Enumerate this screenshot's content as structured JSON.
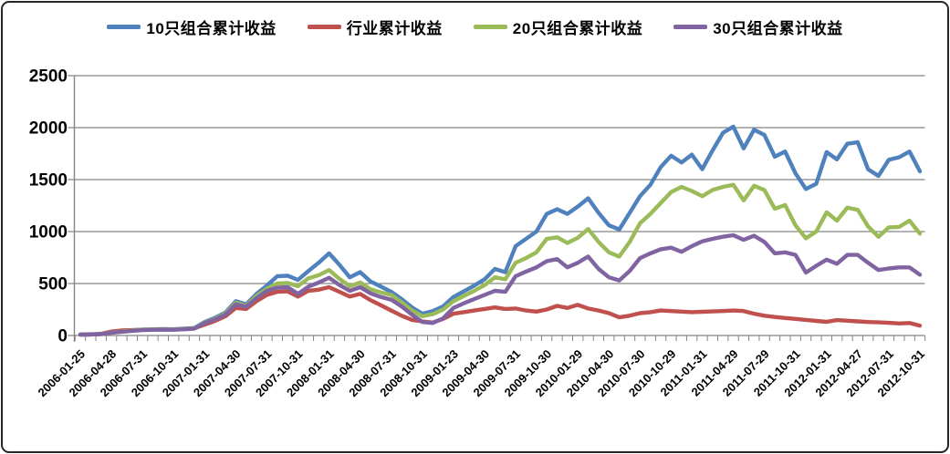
{
  "window": {
    "background": "#ffffff",
    "border_color": "#262626"
  },
  "legend": {
    "items": [
      {
        "label": "10只组合累计收益",
        "color": "#4F81BD"
      },
      {
        "label": "行业累计收益",
        "color": "#C0504D"
      },
      {
        "label": "20只组合累计收益",
        "color": "#9BBB59"
      },
      {
        "label": "30只组合累计收益",
        "color": "#8064A2"
      }
    ]
  },
  "chart_data": {
    "type": "line",
    "title": "",
    "xlabel": "",
    "ylabel": "",
    "ylim": [
      0,
      2500
    ],
    "yticks": [
      0,
      500,
      1000,
      1500,
      2000,
      2500
    ],
    "grid": true,
    "legend_position": "top",
    "n_points": 82,
    "points_per_label": 3,
    "x_tick_labels": [
      "2006-01-25",
      "2006-04-28",
      "2006-07-31",
      "2006-10-31",
      "2007-01-31",
      "2007-04-30",
      "2007-07-31",
      "2007-10-31",
      "2008-01-31",
      "2008-04-30",
      "2008-07-31",
      "2008-10-31",
      "2009-01-23",
      "2009-04-30",
      "2009-07-31",
      "2009-10-30",
      "2010-01-29",
      "2010-04-30",
      "2010-07-30",
      "2010-10-29",
      "2011-01-31",
      "2011-04-29",
      "2011-07-29",
      "2011-10-31",
      "2012-01-31",
      "2012-04-27",
      "2012-07-31",
      "2012-10-31"
    ],
    "series": [
      {
        "name": "10只组合累计收益",
        "color": "#4F81BD",
        "values": [
          10,
          12,
          15,
          30,
          42,
          50,
          58,
          60,
          62,
          60,
          66,
          72,
          130,
          170,
          220,
          330,
          300,
          400,
          480,
          570,
          575,
          535,
          620,
          700,
          790,
          680,
          560,
          610,
          520,
          470,
          420,
          350,
          270,
          210,
          235,
          280,
          370,
          425,
          480,
          540,
          640,
          610,
          860,
          930,
          1000,
          1170,
          1215,
          1170,
          1240,
          1320,
          1180,
          1060,
          1020,
          1180,
          1340,
          1450,
          1620,
          1730,
          1665,
          1740,
          1600,
          1780,
          1950,
          2010,
          1800,
          1980,
          1930,
          1720,
          1770,
          1560,
          1410,
          1460,
          1765,
          1695,
          1845,
          1860,
          1600,
          1535,
          1690,
          1715,
          1770,
          1580
        ]
      },
      {
        "name": "行业累计收益",
        "color": "#C0504D",
        "values": [
          8,
          10,
          16,
          38,
          48,
          52,
          55,
          56,
          58,
          56,
          62,
          68,
          105,
          140,
          185,
          265,
          255,
          330,
          390,
          420,
          425,
          375,
          430,
          440,
          465,
          420,
          375,
          400,
          340,
          290,
          240,
          190,
          150,
          135,
          125,
          160,
          210,
          225,
          240,
          255,
          270,
          255,
          260,
          240,
          230,
          250,
          285,
          265,
          295,
          260,
          240,
          215,
          175,
          190,
          215,
          225,
          240,
          235,
          230,
          225,
          228,
          232,
          235,
          240,
          235,
          210,
          190,
          178,
          168,
          160,
          150,
          140,
          132,
          148,
          142,
          136,
          130,
          126,
          122,
          116,
          120,
          95
        ]
      },
      {
        "name": "20只组合累计收益",
        "color": "#9BBB59",
        "values": [
          8,
          10,
          14,
          28,
          38,
          47,
          55,
          57,
          58,
          57,
          62,
          68,
          125,
          162,
          210,
          315,
          285,
          380,
          450,
          500,
          505,
          475,
          550,
          580,
          630,
          545,
          475,
          510,
          445,
          415,
          390,
          320,
          240,
          185,
          205,
          250,
          330,
          380,
          430,
          485,
          560,
          540,
          700,
          745,
          800,
          930,
          945,
          890,
          940,
          1025,
          900,
          800,
          760,
          900,
          1080,
          1170,
          1275,
          1380,
          1430,
          1390,
          1340,
          1400,
          1430,
          1450,
          1300,
          1440,
          1400,
          1220,
          1255,
          1060,
          935,
          1000,
          1185,
          1105,
          1230,
          1210,
          1050,
          950,
          1040,
          1045,
          1105,
          980
        ]
      },
      {
        "name": "30只组合累计收益",
        "color": "#8064A2",
        "values": [
          8,
          10,
          13,
          26,
          36,
          45,
          52,
          54,
          56,
          55,
          60,
          66,
          120,
          155,
          200,
          300,
          275,
          360,
          430,
          460,
          465,
          400,
          470,
          510,
          555,
          485,
          430,
          465,
          405,
          370,
          345,
          280,
          200,
          130,
          120,
          165,
          265,
          310,
          350,
          390,
          430,
          420,
          570,
          615,
          655,
          715,
          735,
          655,
          700,
          760,
          640,
          560,
          530,
          620,
          745,
          790,
          830,
          845,
          805,
          860,
          905,
          930,
          950,
          965,
          920,
          960,
          900,
          790,
          800,
          775,
          605,
          670,
          730,
          690,
          775,
          775,
          700,
          630,
          645,
          655,
          655,
          585
        ]
      }
    ],
    "axis_color": "#858585",
    "text_color": "#000000"
  }
}
